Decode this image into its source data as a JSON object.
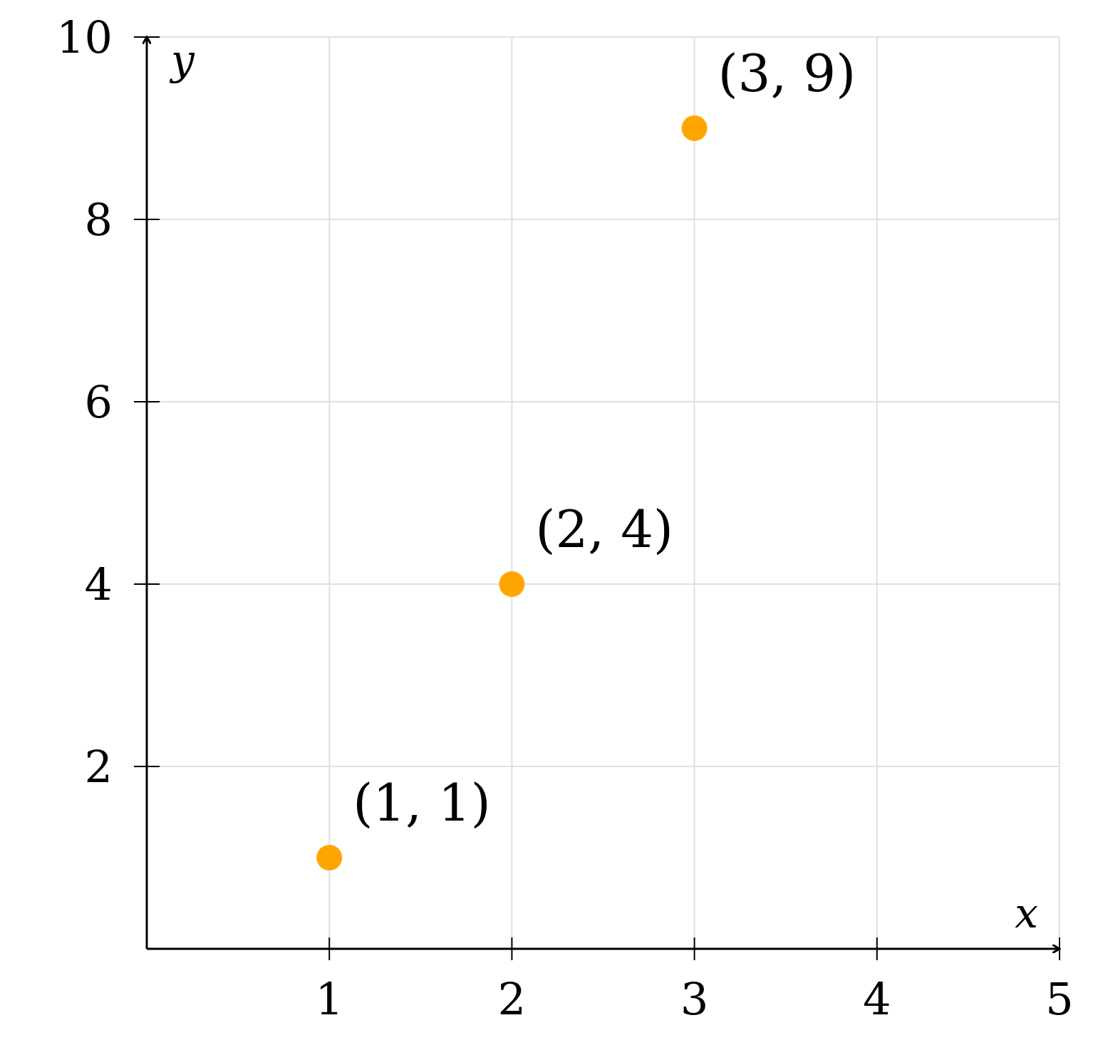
{
  "colors": {
    "marker": "#ffa500",
    "grid": "#e0e0e0",
    "axis": "#000000"
  },
  "chart_data": {
    "type": "scatter",
    "title": "",
    "xlabel": "x",
    "ylabel": "y",
    "xlim": [
      0,
      5
    ],
    "ylim": [
      0,
      10
    ],
    "xticks": [
      1,
      2,
      3,
      4,
      5
    ],
    "yticks": [
      2,
      4,
      6,
      8,
      10
    ],
    "grid": true,
    "axis_style": "left-bottom arrows",
    "series": [
      {
        "points": [
          {
            "x": 1,
            "y": 1,
            "label": "(1, 1)"
          },
          {
            "x": 2,
            "y": 4,
            "label": "(2, 4)"
          },
          {
            "x": 3,
            "y": 9,
            "label": "(3, 9)"
          }
        ]
      }
    ]
  }
}
